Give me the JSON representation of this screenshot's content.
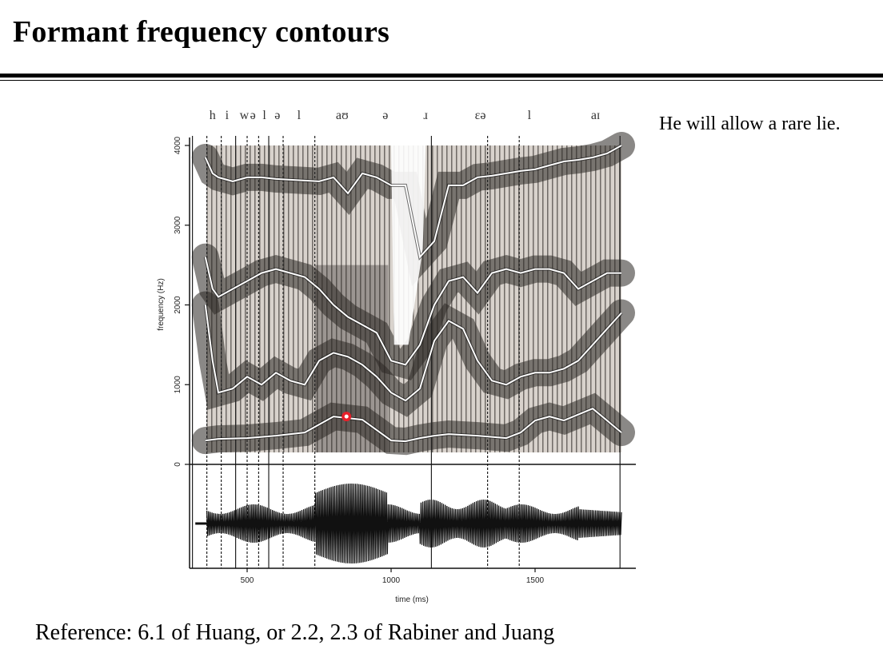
{
  "slide": {
    "title": "Formant frequency contours",
    "caption": "He will allow a rare lie.",
    "reference": "Reference: 6.1 of Huang, or 2.2, 2.3 of Rabiner and Juang"
  },
  "colors": {
    "background": "#ffffff",
    "text": "#000000",
    "spectrogram_dark": "#2a2622",
    "formant_line": "#ffffff",
    "marker": "#e8202a"
  },
  "chart_data": {
    "type": "line",
    "title": "",
    "xlabel": "time (ms)",
    "ylabel": "frequency (Hz)",
    "xlim": [
      300,
      1850
    ],
    "ylim": [
      0,
      4000
    ],
    "x_ticks": [
      500,
      1000,
      1500
    ],
    "y_ticks": [
      0,
      1000,
      2000,
      3000,
      4000
    ],
    "phones": [
      {
        "label": "h",
        "t": 380
      },
      {
        "label": "i",
        "t": 430
      },
      {
        "label": "w",
        "t": 490
      },
      {
        "label": "ə",
        "t": 520
      },
      {
        "label": "l",
        "t": 560
      },
      {
        "label": "ə",
        "t": 605
      },
      {
        "label": "l",
        "t": 680
      },
      {
        "label": "aʊ",
        "t": 830
      },
      {
        "label": "ə",
        "t": 980
      },
      {
        "label": "ɹ",
        "t": 1120
      },
      {
        "label": "ɛə",
        "t": 1310
      },
      {
        "label": "l",
        "t": 1480
      },
      {
        "label": "aɪ",
        "t": 1710
      }
    ],
    "boundaries_ms": [
      310,
      360,
      410,
      460,
      500,
      540,
      575,
      625,
      735,
      1140,
      1335,
      1445,
      1795
    ],
    "series": [
      {
        "x": [
          355,
          400,
          500,
          600,
          700,
          800,
          900,
          950,
          1000,
          1050,
          1100,
          1150,
          1200,
          1300,
          1400,
          1450,
          1500,
          1550,
          1600,
          1700,
          1800
        ],
        "values": [
          300,
          320,
          330,
          360,
          400,
          600,
          560,
          430,
          300,
          290,
          330,
          360,
          380,
          360,
          330,
          400,
          550,
          600,
          550,
          700,
          400
        ]
      },
      {
        "x": [
          355,
          380,
          400,
          450,
          500,
          550,
          600,
          650,
          700,
          750,
          800,
          850,
          900,
          950,
          1000,
          1050,
          1100,
          1150,
          1200,
          1250,
          1300,
          1350,
          1400,
          1450,
          1500,
          1550,
          1600,
          1650,
          1700,
          1750,
          1800
        ],
        "values": [
          2000,
          1300,
          900,
          950,
          1100,
          1000,
          1150,
          1050,
          1000,
          1300,
          1400,
          1350,
          1250,
          1100,
          900,
          800,
          950,
          1550,
          1800,
          1700,
          1300,
          1050,
          1000,
          1100,
          1150,
          1150,
          1200,
          1300,
          1500,
          1700,
          1900
        ]
      },
      {
        "x": [
          355,
          380,
          400,
          450,
          500,
          550,
          600,
          650,
          700,
          750,
          800,
          850,
          900,
          950,
          1000,
          1050,
          1100,
          1150,
          1200,
          1250,
          1300,
          1350,
          1400,
          1450,
          1500,
          1550,
          1600,
          1650,
          1700,
          1750,
          1800
        ],
        "values": [
          2600,
          2200,
          2100,
          2200,
          2300,
          2400,
          2450,
          2400,
          2350,
          2200,
          2000,
          1850,
          1750,
          1650,
          1300,
          1250,
          1500,
          2000,
          2300,
          2350,
          2150,
          2400,
          2450,
          2400,
          2450,
          2450,
          2400,
          2200,
          2300,
          2400,
          2400
        ]
      },
      {
        "x": [
          355,
          380,
          400,
          450,
          500,
          550,
          600,
          650,
          700,
          750,
          800,
          850,
          900,
          950,
          1000,
          1050,
          1100,
          1150,
          1200,
          1250,
          1300,
          1350,
          1400,
          1450,
          1500,
          1550,
          1600,
          1650,
          1700,
          1750,
          1800
        ],
        "values": [
          3850,
          3650,
          3600,
          3550,
          3600,
          3600,
          3580,
          3570,
          3560,
          3550,
          3600,
          3400,
          3650,
          3600,
          3500,
          3500,
          2600,
          2800,
          3500,
          3500,
          3600,
          3620,
          3650,
          3680,
          3700,
          3750,
          3800,
          3820,
          3850,
          3900,
          4000
        ]
      }
    ],
    "annotations": [
      {
        "type": "marker",
        "x": 845,
        "y": 600
      }
    ]
  }
}
